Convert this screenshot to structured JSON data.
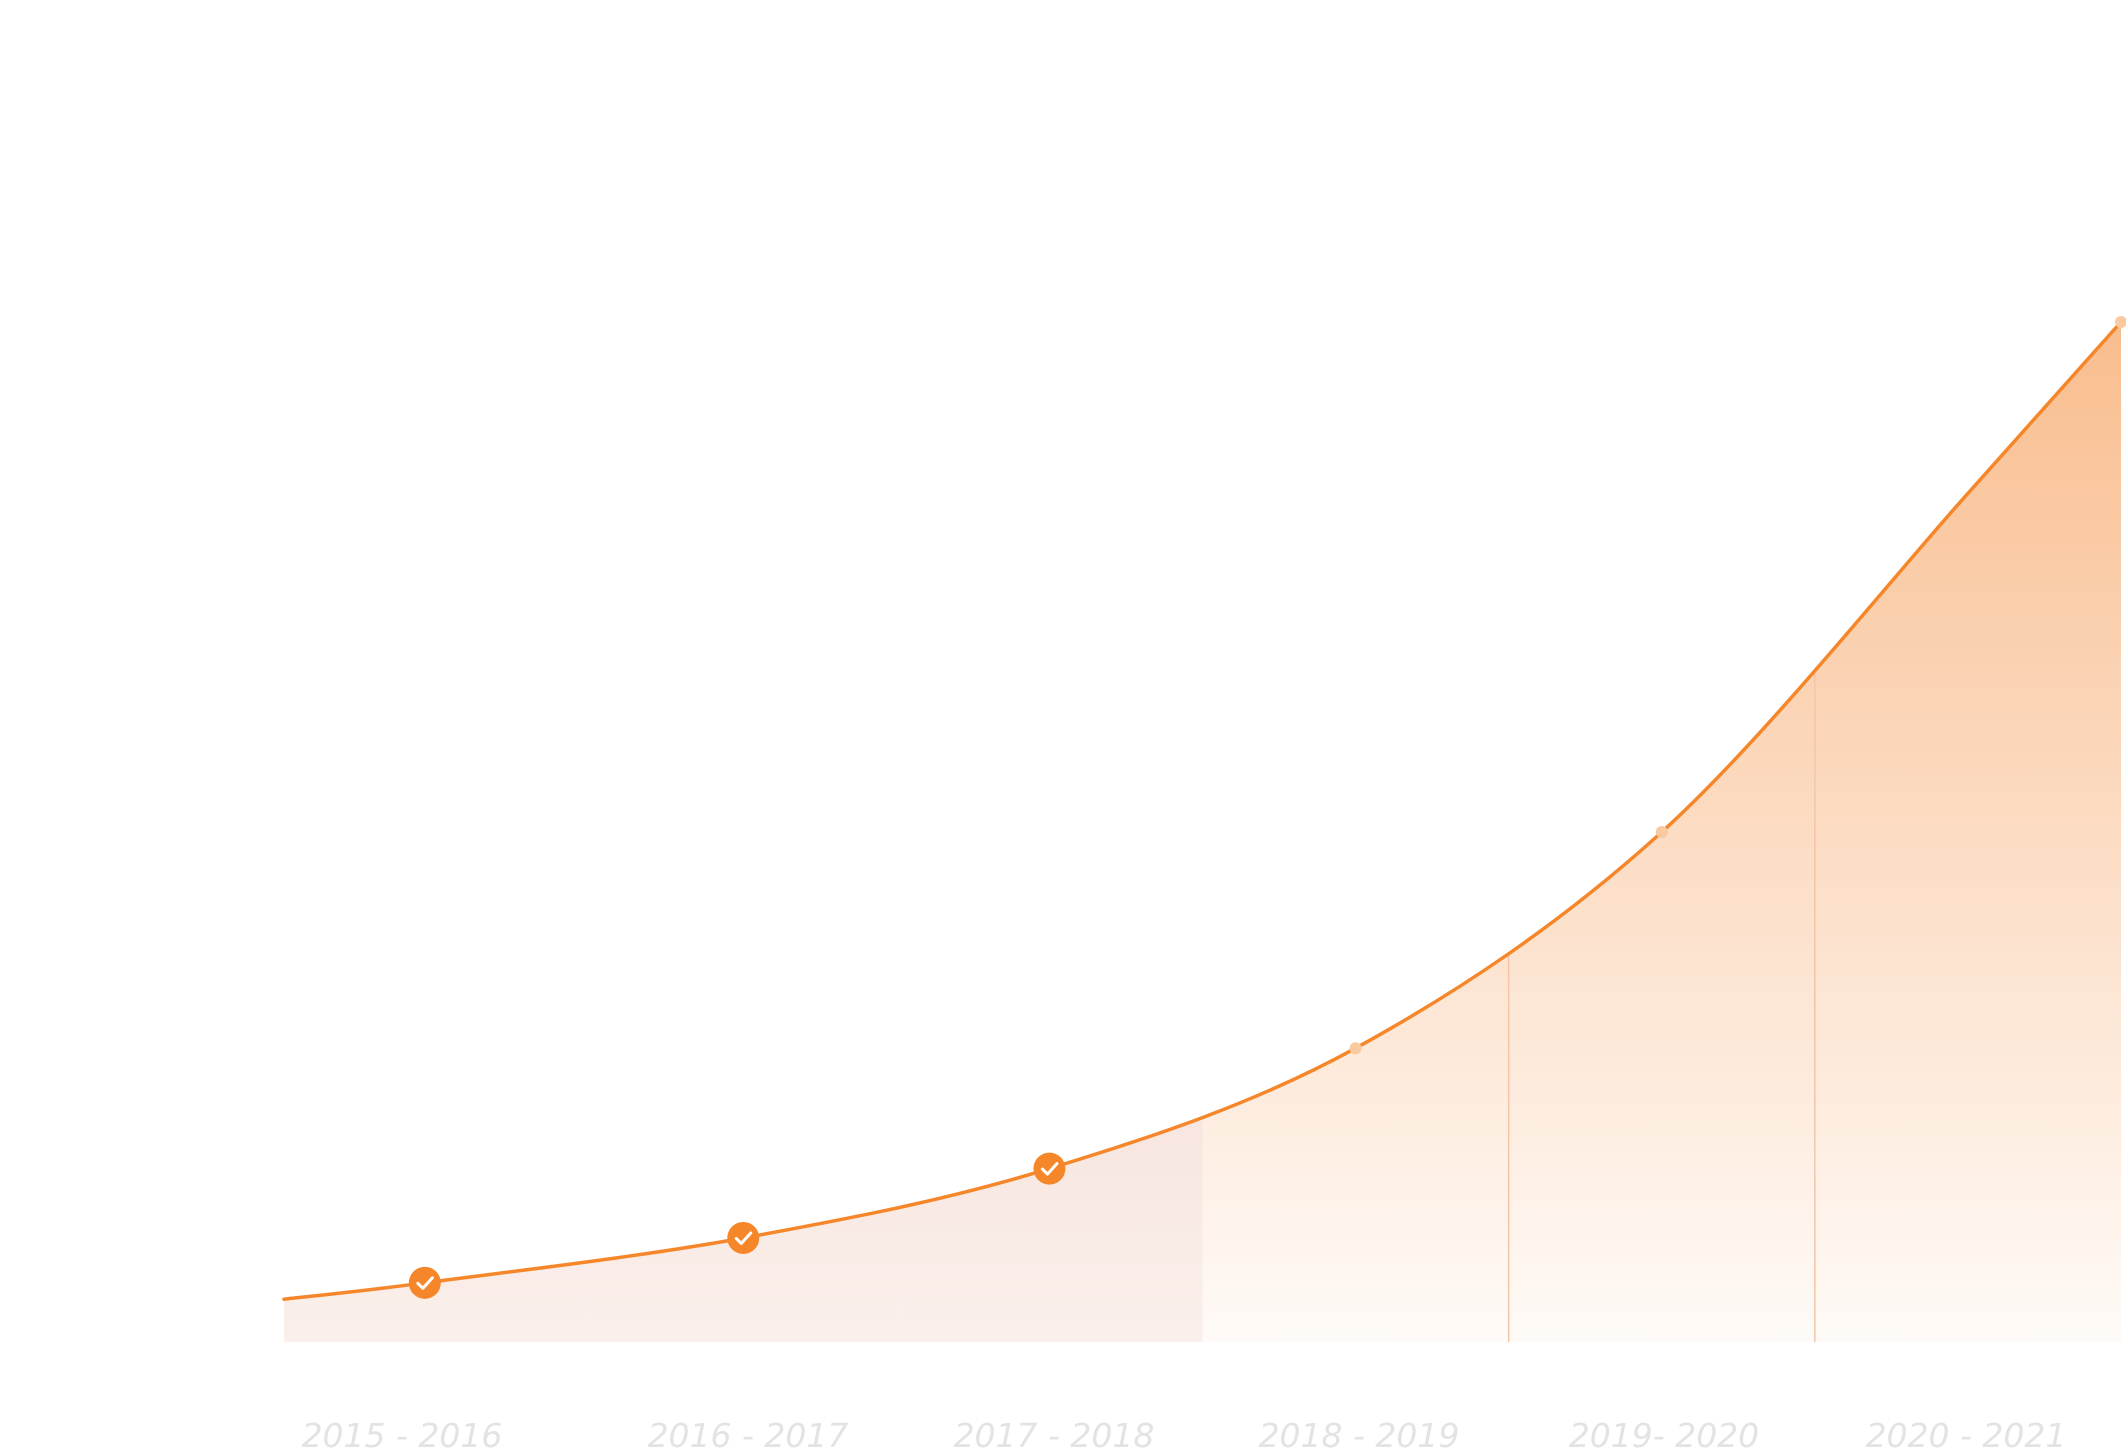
{
  "chart_data": {
    "type": "area",
    "categories": [
      "2015 - 2016",
      "2016 - 2017",
      "2017 - 2018",
      "2018 - 2019",
      "2019- 2020",
      "2020 - 2021"
    ],
    "x": [
      0.0,
      0.46,
      1.5,
      2.5,
      3.5,
      4.5,
      5.5,
      6.0
    ],
    "y": [
      4.2,
      5.8,
      10.2,
      17.0,
      28.8,
      50.0,
      83.2,
      100.0
    ],
    "points": [
      {
        "x": 0.46,
        "y": 5.8,
        "label": "2015 - 2016",
        "completed": true
      },
      {
        "x": 1.5,
        "y": 10.2,
        "label": "2016 - 2017",
        "completed": true
      },
      {
        "x": 2.5,
        "y": 17.0,
        "label": "2017 - 2018",
        "completed": true
      },
      {
        "x": 3.5,
        "y": 28.8,
        "label": "2018 - 2019",
        "completed": false
      },
      {
        "x": 4.5,
        "y": 50.0,
        "label": "2019- 2020",
        "completed": false
      },
      {
        "x": 6.0,
        "y": 100.0,
        "label": "2020 - 2021",
        "completed": false
      }
    ],
    "ylim": [
      0,
      100
    ],
    "xlim": [
      0,
      6
    ],
    "title": "",
    "xlabel": "",
    "ylabel": "",
    "grid": false,
    "legend": "none",
    "colors": {
      "line": "#f5872a",
      "marker_completed": "#f5872a",
      "marker_pending": "#f9c9a0",
      "band_past": "#e8b19d",
      "band_future": "#f8b682",
      "tick_text": "#e3e3e3",
      "divider": "#f2c6a6"
    },
    "icons": {
      "completed_marker": "check-icon"
    }
  }
}
